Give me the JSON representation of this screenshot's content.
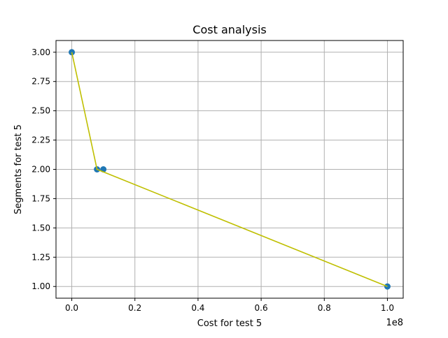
{
  "chart_data": {
    "type": "scatter",
    "title": "Cost analysis",
    "xlabel": "Cost for test 5",
    "ylabel": "Segments for test 5",
    "x_scale_label": "1e8",
    "xlim": [
      -0.05,
      1.05
    ],
    "ylim": [
      0.9,
      3.1
    ],
    "xticks": [
      0.0,
      0.2,
      0.4,
      0.6,
      0.8,
      1.0
    ],
    "xtick_labels": [
      "0.0",
      "0.2",
      "0.4",
      "0.6",
      "0.8",
      "1.0"
    ],
    "yticks": [
      1.0,
      1.25,
      1.5,
      1.75,
      2.0,
      2.25,
      2.5,
      2.75,
      3.0
    ],
    "ytick_labels": [
      "1.00",
      "1.25",
      "1.50",
      "1.75",
      "2.00",
      "2.25",
      "2.50",
      "2.75",
      "3.00"
    ],
    "grid": true,
    "series": [
      {
        "kind": "scatter",
        "x": [
          0.0,
          0.08,
          0.1,
          1.0
        ],
        "y": [
          3,
          2,
          2,
          1
        ],
        "color": "#1f77b4"
      },
      {
        "kind": "line",
        "x": [
          0.0,
          0.08,
          1.0
        ],
        "y": [
          3,
          2,
          1
        ],
        "color": "#bfbf00"
      }
    ]
  }
}
